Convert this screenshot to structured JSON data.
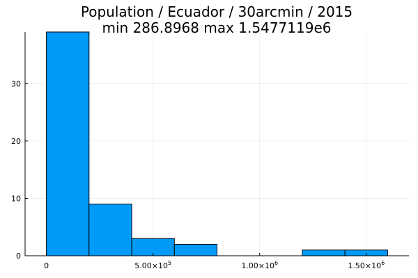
{
  "chart_data": {
    "type": "bar",
    "title": "Population / Ecuador / 30arcmin / 2015",
    "subtitle": "min 286.8968  max 1.5477119e6",
    "xlabel": "",
    "ylabel": "",
    "bin_edges": [
      0,
      200000,
      400000,
      600000,
      800000,
      1000000,
      1200000,
      1400000,
      1600000
    ],
    "values": [
      39,
      9,
      3,
      2,
      0,
      0,
      1,
      1
    ],
    "xlim": [
      -100000,
      1700000
    ],
    "ylim": [
      0,
      39
    ],
    "x_ticks": [
      {
        "value": 0,
        "mantissa": "0",
        "exp": ""
      },
      {
        "value": 500000,
        "mantissa": "5.00×10",
        "exp": "5"
      },
      {
        "value": 1000000,
        "mantissa": "1.00×10",
        "exp": "6"
      },
      {
        "value": 1500000,
        "mantissa": "1.50×10",
        "exp": "6"
      }
    ],
    "y_ticks": [
      {
        "value": 0,
        "label": "0"
      },
      {
        "value": 10,
        "label": "10"
      },
      {
        "value": 20,
        "label": "20"
      },
      {
        "value": 30,
        "label": "30"
      }
    ],
    "grid": true,
    "legend": "none",
    "bar_color": "#009AF9",
    "bar_edge_color": "#000000"
  }
}
